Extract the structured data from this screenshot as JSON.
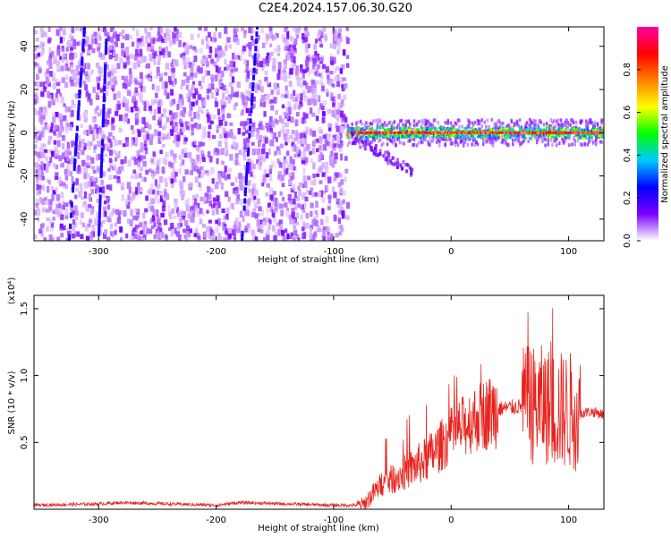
{
  "title": "C2E4.2024.157.06.30.G20",
  "chart_data": [
    {
      "type": "heatmap",
      "xlabel": "Height of straight line (km)",
      "ylabel": "Frequency (Hz)",
      "xlim": [
        -355,
        130
      ],
      "ylim": [
        -50,
        49
      ],
      "xticks": [
        -300,
        -200,
        -100,
        0,
        100
      ],
      "yticks": [
        -40,
        -20,
        0,
        20,
        40
      ],
      "noise_region": [
        -355,
        -88
      ],
      "signal_region": [
        -88,
        130
      ],
      "signal_frequency": 0,
      "tail_feature": {
        "x": [
          -85,
          -33
        ],
        "y": [
          -2,
          -18
        ]
      },
      "colorbar": {
        "label": "Normalized spectral amplitude",
        "range": [
          0.0,
          1.0
        ],
        "ticks": [
          0.0,
          0.2,
          0.4,
          0.6,
          0.8
        ],
        "tick_labels": [
          "0.0",
          "0.2",
          "0.4",
          "0.6",
          "0.8"
        ],
        "colors": [
          "#ffffff",
          "#7a00ff",
          "#0000ff",
          "#00c8ff",
          "#00ff00",
          "#ffff00",
          "#ff8000",
          "#ff0000",
          "#ff00a0"
        ]
      }
    },
    {
      "type": "line",
      "xlabel": "Height of straight line (km)",
      "ylabel": "SNR (10 * v/v)",
      "y_scale_label": "(x10⁴)",
      "xlim": [
        -355,
        130
      ],
      "ylim": [
        0,
        1.6
      ],
      "xticks": [
        -300,
        -200,
        -100,
        0,
        100
      ],
      "yticks": [
        0.5,
        1.0,
        1.5
      ],
      "ytick_labels": [
        "0.5",
        "1.0",
        "1.5"
      ],
      "color": "#e8231e",
      "envelope": {
        "x": [
          -355,
          -300,
          -280,
          -200,
          -180,
          -100,
          -75,
          -60,
          -40,
          -20,
          0,
          20,
          40,
          60,
          70,
          80,
          90,
          100,
          110,
          120,
          130
        ],
        "y": [
          0.03,
          0.04,
          0.05,
          0.03,
          0.05,
          0.03,
          0.03,
          0.18,
          0.27,
          0.38,
          0.55,
          0.68,
          0.75,
          0.77,
          0.78,
          0.78,
          0.74,
          0.74,
          0.72,
          0.73,
          0.71
        ]
      }
    }
  ]
}
